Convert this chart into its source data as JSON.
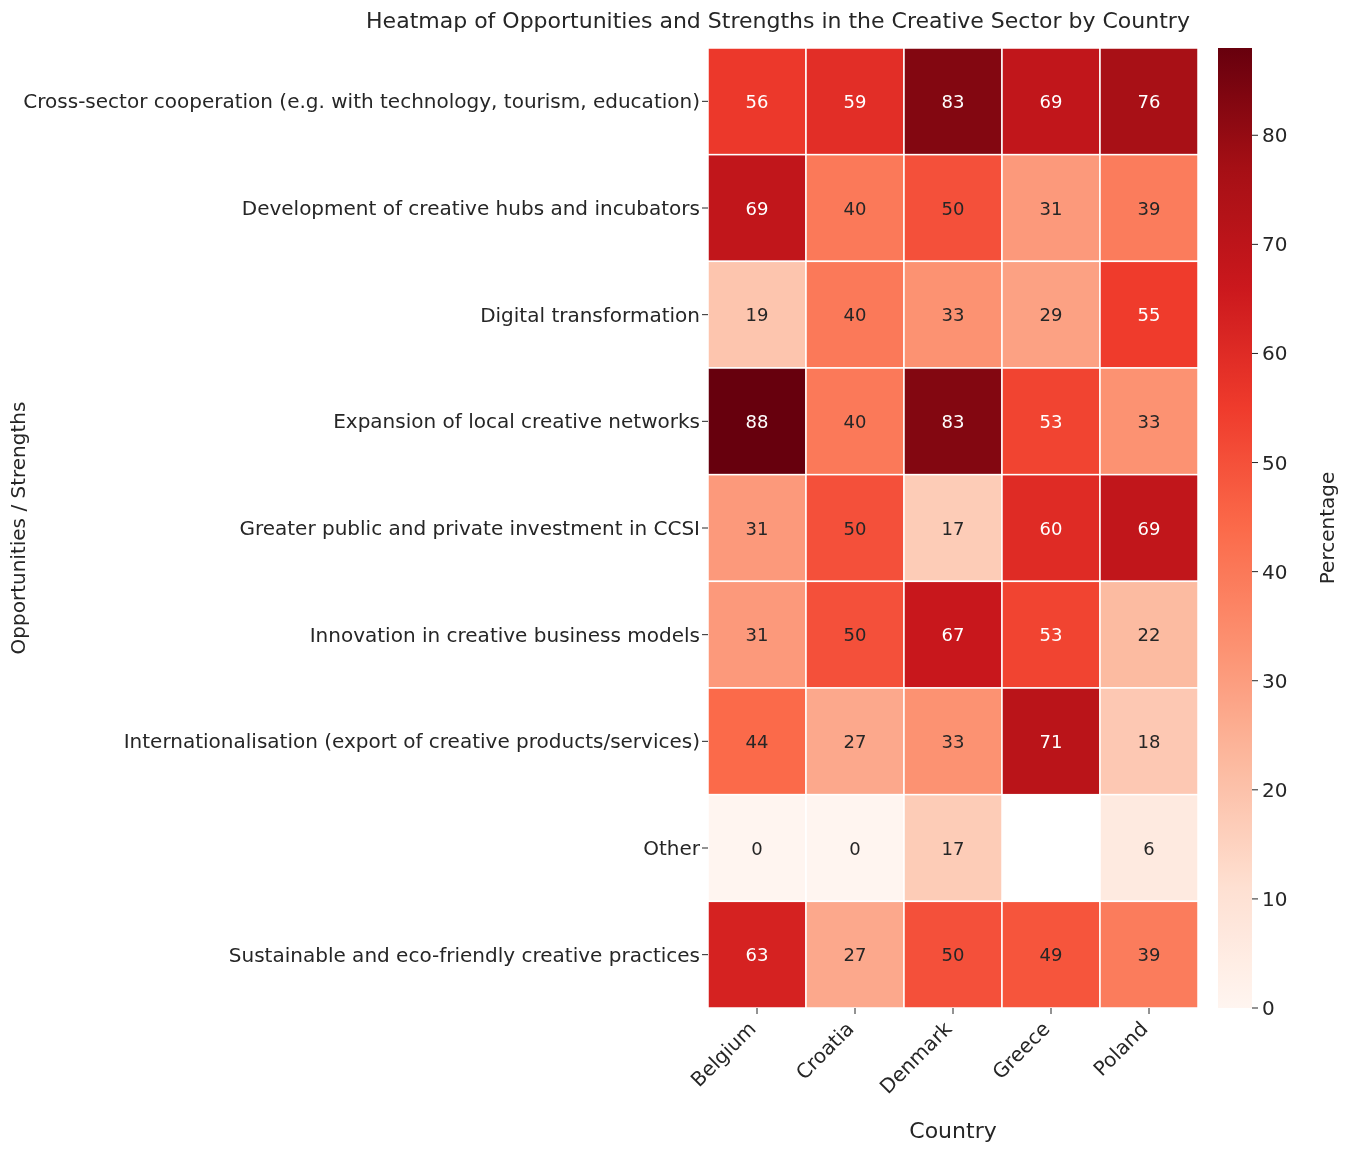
{
  "chart_data": {
    "type": "heatmap",
    "title": "Heatmap of Opportunities and Strengths in the Creative Sector by Country",
    "xlabel": "Country",
    "ylabel": "Opportunities / Strengths",
    "clabel": "Percentage",
    "categories": [
      "Belgium",
      "Croatia",
      "Denmark",
      "Greece",
      "Poland"
    ],
    "y_categories": [
      "Cross-sector cooperation (e.g. with technology, tourism, education)",
      "Development of creative hubs and incubators",
      "Digital transformation",
      "Expansion of local creative networks",
      "Greater public and private investment in CCSI",
      "Innovation in creative business models",
      "Internationalisation (export of creative products/services)",
      "Other",
      "Sustainable and eco-friendly creative practices"
    ],
    "cells": [
      [
        56,
        59,
        83,
        69,
        76
      ],
      [
        69,
        40,
        50,
        31,
        39
      ],
      [
        19,
        40,
        33,
        29,
        55
      ],
      [
        88,
        40,
        83,
        53,
        33
      ],
      [
        31,
        50,
        17,
        60,
        69
      ],
      [
        31,
        50,
        67,
        53,
        22
      ],
      [
        44,
        27,
        33,
        71,
        18
      ],
      [
        0,
        0,
        17,
        null,
        6
      ],
      [
        63,
        27,
        50,
        49,
        39
      ]
    ],
    "data_labels": true,
    "clim": [
      0,
      88
    ],
    "cticks": [
      0,
      10,
      20,
      30,
      40,
      50,
      60,
      70,
      80
    ]
  }
}
